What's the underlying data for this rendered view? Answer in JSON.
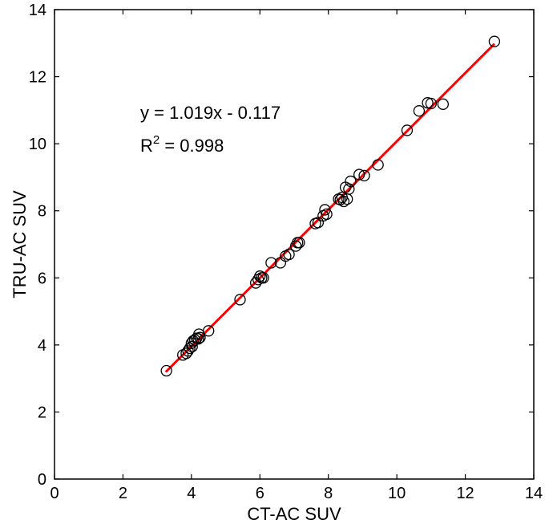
{
  "chart_data": {
    "type": "scatter",
    "xlabel": "CT-AC SUV",
    "ylabel": "TRU-AC SUV",
    "xlim": [
      0,
      14
    ],
    "ylim": [
      0,
      14
    ],
    "xticks": [
      0,
      2,
      4,
      6,
      8,
      10,
      12,
      14
    ],
    "yticks": [
      0,
      2,
      4,
      6,
      8,
      10,
      12,
      14
    ],
    "grid": false,
    "annotations": {
      "equation": "y = 1.019x - 0.117",
      "r2_label": "R",
      "r2_superscript": "2",
      "r2_value": " = 0.998"
    },
    "fit_line": {
      "slope": 1.019,
      "intercept": -0.117,
      "x_range": [
        3.25,
        12.85
      ],
      "color": "#ff0000"
    },
    "marker_color": "#000000",
    "points": [
      [
        3.27,
        3.23
      ],
      [
        3.75,
        3.7
      ],
      [
        3.85,
        3.75
      ],
      [
        3.9,
        3.82
      ],
      [
        3.95,
        3.9
      ],
      [
        4.0,
        4.05
      ],
      [
        4.02,
        3.95
      ],
      [
        4.05,
        4.12
      ],
      [
        4.1,
        4.15
      ],
      [
        4.15,
        4.2
      ],
      [
        4.2,
        4.18
      ],
      [
        4.22,
        4.32
      ],
      [
        4.25,
        4.22
      ],
      [
        4.5,
        4.42
      ],
      [
        5.42,
        5.35
      ],
      [
        5.88,
        5.85
      ],
      [
        5.95,
        5.95
      ],
      [
        6.0,
        6.05
      ],
      [
        6.05,
        6.0
      ],
      [
        6.1,
        6.0
      ],
      [
        6.33,
        6.45
      ],
      [
        6.6,
        6.45
      ],
      [
        6.75,
        6.65
      ],
      [
        6.85,
        6.7
      ],
      [
        7.05,
        6.95
      ],
      [
        7.1,
        7.05
      ],
      [
        7.15,
        7.05
      ],
      [
        7.62,
        7.62
      ],
      [
        7.7,
        7.65
      ],
      [
        7.85,
        7.85
      ],
      [
        7.9,
        8.03
      ],
      [
        7.95,
        7.9
      ],
      [
        8.3,
        8.35
      ],
      [
        8.35,
        8.33
      ],
      [
        8.4,
        8.4
      ],
      [
        8.45,
        8.28
      ],
      [
        8.5,
        8.7
      ],
      [
        8.55,
        8.35
      ],
      [
        8.6,
        8.65
      ],
      [
        8.65,
        8.88
      ],
      [
        8.9,
        9.08
      ],
      [
        9.05,
        9.05
      ],
      [
        9.45,
        9.37
      ],
      [
        10.3,
        10.4
      ],
      [
        10.65,
        10.98
      ],
      [
        10.9,
        11.22
      ],
      [
        11.0,
        11.2
      ],
      [
        11.35,
        11.18
      ],
      [
        12.85,
        13.05
      ]
    ]
  }
}
